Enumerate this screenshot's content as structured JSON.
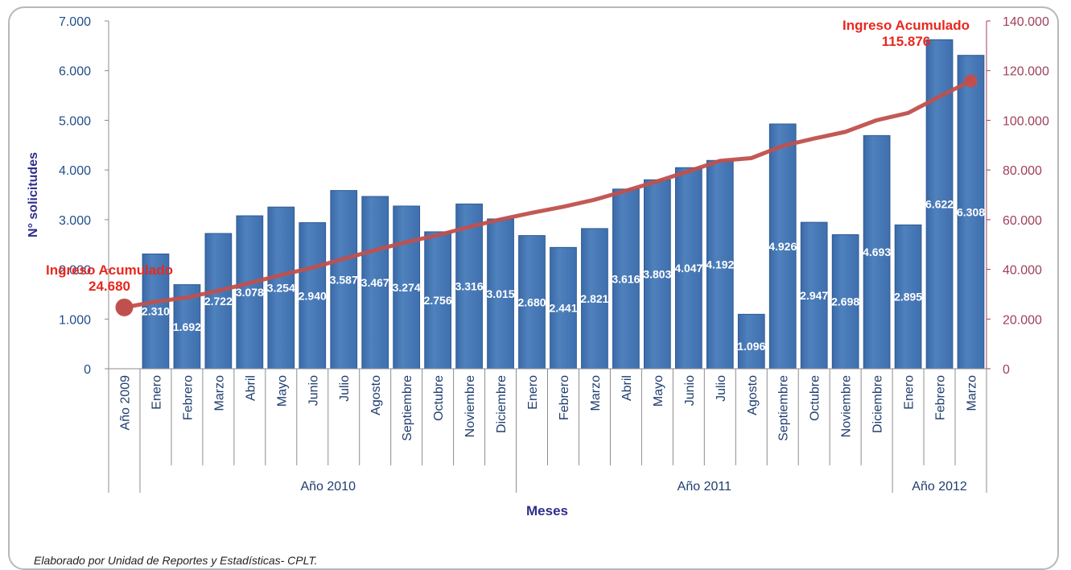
{
  "chart_data": {
    "type": "bar+line",
    "title": "",
    "xlabel": "Meses",
    "ylabel": "N° solicitudes",
    "ylim": [
      0,
      7000
    ],
    "y2lim": [
      0,
      140000
    ],
    "y_ticks": [
      "0",
      "1.000",
      "2.000",
      "3.000",
      "4.000",
      "5.000",
      "6.000",
      "7.000"
    ],
    "y2_ticks": [
      "0",
      "20.000",
      "40.000",
      "60.000",
      "80.000",
      "100.000",
      "120.000",
      "140.000"
    ],
    "categories": [
      "Año 2009",
      "Enero",
      "Febrero",
      "Marzo",
      "Abril",
      "Mayo",
      "Junio",
      "Julio",
      "Agosto",
      "Septiembre",
      "Octubre",
      "Noviembre",
      "Diciembre",
      "Enero",
      "Febrero",
      "Marzo",
      "Abril",
      "Mayo",
      "Junio",
      "Julio",
      "Agosto",
      "Septiembre",
      "Octubre",
      "Noviembre",
      "Diciembre",
      "Enero",
      "Febrero",
      "Marzo"
    ],
    "groups": [
      {
        "label": "Año 2010",
        "start": 1,
        "end": 12
      },
      {
        "label": "Año 2011",
        "start": 13,
        "end": 24
      },
      {
        "label": "Año 2012",
        "start": 25,
        "end": 27
      }
    ],
    "series": [
      {
        "type": "bar",
        "axis": "left",
        "color": "#4f81bd",
        "values": [
          null,
          2310,
          1692,
          2722,
          3078,
          3254,
          2940,
          3587,
          3467,
          3274,
          2756,
          3316,
          3015,
          2680,
          2441,
          2821,
          3616,
          3803,
          4047,
          4192,
          1096,
          4926,
          2947,
          2698,
          4693,
          2895,
          6622,
          6308
        ],
        "labels": [
          "",
          "2.310",
          "1.692",
          "2.722",
          "3.078",
          "3.254",
          "2.940",
          "3.587",
          "3.467",
          "3.274",
          "2.756",
          "3.316",
          "3.015",
          "2.680",
          "2.441",
          "2.821",
          "3.616",
          "3.803",
          "4.047",
          "4.192",
          "1.096",
          "4.926",
          "2.947",
          "2.698",
          "4.693",
          "2.895",
          "6.622",
          "6.308"
        ]
      },
      {
        "type": "line",
        "axis": "right",
        "color": "#c0504d",
        "values": [
          24680,
          26990,
          28682,
          31404,
          34482,
          37736,
          40676,
          44263,
          47730,
          51004,
          53760,
          57076,
          60091,
          62771,
          65212,
          68033,
          71649,
          75452,
          79499,
          83691,
          84787,
          89713,
          92660,
          95358,
          100051,
          102946,
          109568,
          115876
        ]
      }
    ],
    "annotations": [
      {
        "text": "Ingreso Acumulado",
        "value": "24.680"
      },
      {
        "text": "Ingreso Acumulado",
        "value": "115.876"
      }
    ],
    "colors": {
      "bar": "#4f81bd",
      "line": "#c0504d",
      "left_axis_text": "#1f4e8c",
      "right_axis_text": "#a0405a",
      "annotation": "#e8281e",
      "axis_title": "#2e2e8c"
    },
    "grid": false
  },
  "footer": "Elaborado  por Unidad de Reportes y Estadísticas- CPLT."
}
